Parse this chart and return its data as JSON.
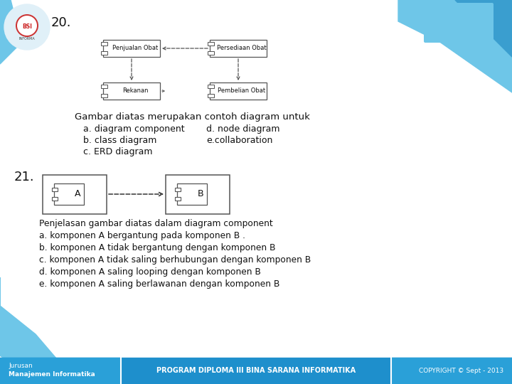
{
  "title_number_20": "20.",
  "title_number_21": "21.",
  "question_20_line1": "Gambar diatas merupakan contoh diagram untuk",
  "question_20_line2a": "a. diagram component",
  "question_20_line2b": "d. node diagram",
  "question_20_line3a": "b. class diagram",
  "question_20_line3b": "e.collaboration",
  "question_20_line4": "c. ERD diagram",
  "question_21_line1": "Penjelasan gambar diatas dalam diagram component",
  "question_21_line2": "a. komponen A bergantung pada komponen B .",
  "question_21_line3": "b. komponen A tidak bergantung dengan komponen B",
  "question_21_line4": "c. komponen A tidak saling berhubungan dengan komponen B",
  "question_21_line5": "d. komponen A saling looping dengan komponen B",
  "question_21_line6": "e. komponen A saling berlawanan dengan komponen B",
  "footer_left1": "Jurusan",
  "footer_left2": "Manajemen Informatika",
  "footer_center": "PROGRAM DIPLOMA III BINA SARANA INFORMATIKA",
  "footer_right": "COPYRIGHT © Sept - 2013",
  "text_color": "#111111",
  "white": "#ffffff",
  "blue_light": "#6ec6e8",
  "blue_mid": "#3a9ecf",
  "blue_dark": "#1a7ab0",
  "footer_blue": "#1e8fcc",
  "comp_labels_top": [
    "Penjualan Obat",
    "Persediaan Obat"
  ],
  "comp_labels_bot": [
    "Rekanan",
    "Pembelian Obat"
  ]
}
